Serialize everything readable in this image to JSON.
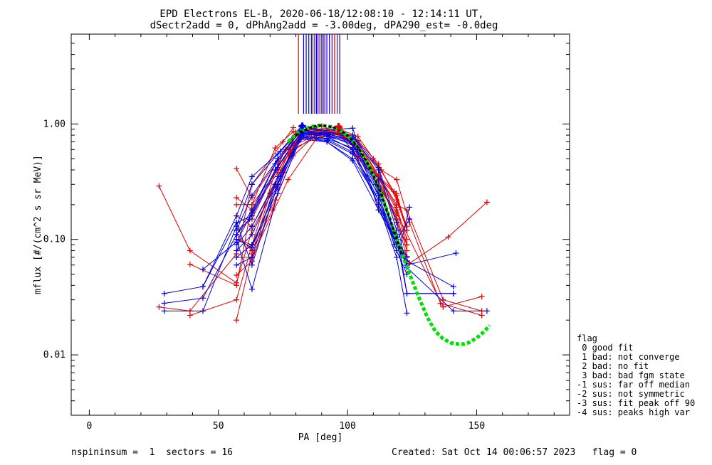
{
  "title_line1": "EPD Electrons EL-B, 2020-06-18/12:08:10 - 12:14:11 UT,",
  "title_line2": "dSectr2add = 0, dPhAng2add = -3.00deg, dPA290_est=  -0.0deg",
  "footer_left": "nspininsum =  1  sectors = 16",
  "footer_right": "Created: Sat Oct 14 00:06:57 2023   flag = 0",
  "legend": {
    "title": "flag",
    "items": [
      " 0 good fit",
      " 1 bad: not converge",
      " 2 bad: no fit",
      " 3 bad: bad fgm state",
      "-1 sus: far off median",
      "-2 sus: not symmetric",
      "-3 sus: fit peak off 90",
      "-4 sus: peaks high var"
    ]
  },
  "colors": {
    "red": "#e00000",
    "blue": "#0000e0",
    "green": "#00e000",
    "black": "#000000",
    "purple": "#7a0080"
  },
  "chart_data": {
    "type": "line",
    "xlabel": "PA [deg]",
    "ylabel": "mflux [#/(cm^2 s sr MeV)]",
    "xlim": [
      -7,
      186
    ],
    "ylim": [
      0.003,
      6
    ],
    "yscale": "log",
    "xticks": [
      0,
      50,
      100,
      150
    ],
    "yticks": [
      0.01,
      0.1,
      1.0
    ],
    "ytick_labels": [
      "0.01",
      "0.10",
      "1.00"
    ],
    "series": [
      {
        "color": "red",
        "x": [
          27,
          39,
          57,
          63,
          75,
          81,
          88,
          97,
          104,
          112,
          119,
          124,
          139,
          154
        ],
        "y": [
          0.29,
          0.08,
          0.042,
          0.12,
          0.38,
          0.78,
          0.86,
          0.82,
          0.62,
          0.29,
          0.1,
          0.062,
          0.105,
          0.21
        ]
      },
      {
        "color": "red",
        "x": [
          27,
          39,
          57,
          63,
          75,
          79
        ],
        "y": [
          0.026,
          0.024,
          0.075,
          0.3,
          0.7,
          0.93
        ]
      },
      {
        "color": "red",
        "x": [
          39,
          57,
          63,
          72,
          79,
          88,
          97,
          104,
          119,
          137,
          152
        ],
        "y": [
          0.061,
          0.04,
          0.2,
          0.62,
          0.86,
          0.9,
          0.94,
          0.55,
          0.17,
          0.026,
          0.032
        ]
      },
      {
        "color": "red",
        "x": [
          39,
          57,
          63,
          73,
          80,
          88,
          97,
          104,
          119,
          123,
          137,
          152
        ],
        "y": [
          0.022,
          0.03,
          0.09,
          0.45,
          0.85,
          0.88,
          0.9,
          0.7,
          0.2,
          0.18,
          0.03,
          0.024
        ]
      },
      {
        "color": "red",
        "x": [
          57,
          63,
          70,
          79,
          88,
          97,
          104,
          113,
          119,
          124,
          136,
          152
        ],
        "y": [
          0.02,
          0.075,
          0.25,
          0.68,
          0.85,
          0.92,
          0.64,
          0.4,
          0.33,
          0.14,
          0.028,
          0.022
        ]
      },
      {
        "color": "red",
        "x": [
          57,
          63,
          73,
          81,
          90,
          97,
          103,
          109,
          119,
          123
        ],
        "y": [
          0.41,
          0.23,
          0.48,
          0.83,
          0.96,
          0.83,
          0.64,
          0.41,
          0.25,
          0.12
        ]
      },
      {
        "color": "red",
        "x": [
          57,
          63,
          73,
          80,
          88,
          97,
          104,
          112,
          119,
          123
        ],
        "y": [
          0.23,
          0.18,
          0.38,
          0.8,
          0.83,
          0.86,
          0.6,
          0.35,
          0.14,
          0.09
        ]
      },
      {
        "color": "red",
        "x": [
          57,
          63,
          70,
          77,
          88,
          97,
          104,
          112,
          119,
          123
        ],
        "y": [
          0.16,
          0.13,
          0.25,
          0.55,
          0.8,
          0.9,
          0.72,
          0.45,
          0.22,
          0.12
        ]
      },
      {
        "color": "red",
        "x": [
          57,
          63,
          72,
          79,
          88,
          97,
          104,
          110,
          118,
          123
        ],
        "y": [
          0.1,
          0.09,
          0.22,
          0.53,
          0.82,
          0.9,
          0.78,
          0.5,
          0.26,
          0.13
        ]
      },
      {
        "color": "red",
        "x": [
          57,
          63,
          71,
          78,
          88,
          97,
          104,
          112,
          119,
          123
        ],
        "y": [
          0.11,
          0.08,
          0.18,
          0.6,
          0.76,
          0.88,
          0.66,
          0.36,
          0.19,
          0.1
        ]
      },
      {
        "color": "red",
        "x": [
          57,
          63,
          77,
          88,
          97,
          104,
          119,
          123
        ],
        "y": [
          0.07,
          0.07,
          0.33,
          0.75,
          0.83,
          0.58,
          0.16,
          0.08
        ]
      },
      {
        "color": "red",
        "x": [
          57,
          63,
          73,
          79,
          88,
          97,
          104,
          112,
          119,
          123
        ],
        "y": [
          0.049,
          0.065,
          0.3,
          0.65,
          0.8,
          0.83,
          0.5,
          0.32,
          0.15,
          0.07
        ]
      },
      {
        "color": "red",
        "x": [
          57,
          63,
          73,
          81,
          88,
          97,
          104,
          119,
          123
        ],
        "y": [
          0.2,
          0.2,
          0.4,
          0.72,
          0.9,
          0.8,
          0.52,
          0.24,
          0.12
        ]
      },
      {
        "color": "red",
        "x": [
          57,
          63,
          76,
          86,
          96,
          104,
          112,
          119,
          123
        ],
        "y": [
          0.12,
          0.15,
          0.6,
          0.82,
          0.85,
          0.62,
          0.35,
          0.18,
          0.09
        ]
      },
      {
        "color": "blue",
        "x": [
          29,
          44,
          57,
          63,
          73,
          82,
          92,
          102,
          112,
          119,
          123,
          141
        ],
        "y": [
          0.024,
          0.024,
          0.13,
          0.3,
          0.55,
          0.95,
          0.88,
          0.92,
          0.18,
          0.1,
          0.034,
          0.034
        ]
      },
      {
        "color": "blue",
        "x": [
          29,
          44,
          57,
          63,
          74,
          83,
          92,
          102,
          112,
          119,
          123,
          141,
          154
        ],
        "y": [
          0.034,
          0.039,
          0.16,
          0.35,
          0.58,
          0.94,
          0.85,
          0.8,
          0.42,
          0.14,
          0.057,
          0.024,
          0.024
        ]
      },
      {
        "color": "blue",
        "x": [
          44,
          57,
          63,
          73,
          82,
          92,
          102,
          111,
          119,
          123,
          142
        ],
        "y": [
          0.055,
          0.095,
          0.17,
          0.5,
          0.9,
          0.82,
          0.73,
          0.3,
          0.11,
          0.06,
          0.076
        ]
      },
      {
        "color": "blue",
        "x": [
          29,
          44,
          57,
          63,
          72,
          83,
          92,
          102,
          112,
          119,
          123,
          141
        ],
        "y": [
          0.028,
          0.031,
          0.11,
          0.18,
          0.45,
          0.88,
          0.83,
          0.77,
          0.4,
          0.12,
          0.034,
          0.034
        ]
      },
      {
        "color": "blue",
        "x": [
          44,
          57,
          63,
          73,
          82,
          92,
          102,
          112,
          119,
          123,
          141
        ],
        "y": [
          0.039,
          0.14,
          0.16,
          0.42,
          0.85,
          0.82,
          0.71,
          0.33,
          0.09,
          0.065,
          0.039
        ]
      },
      {
        "color": "blue",
        "x": [
          57,
          63,
          73,
          82,
          92,
          102,
          112,
          119,
          123
        ],
        "y": [
          0.12,
          0.24,
          0.5,
          0.88,
          0.8,
          0.7,
          0.28,
          0.1,
          0.071
        ]
      },
      {
        "color": "blue",
        "x": [
          57,
          62,
          72,
          82,
          92,
          102,
          112,
          120,
          124
        ],
        "y": [
          0.11,
          0.15,
          0.4,
          0.84,
          0.8,
          0.66,
          0.24,
          0.08,
          0.19
        ]
      },
      {
        "color": "blue",
        "x": [
          57,
          63,
          73,
          83,
          92,
          102,
          112,
          119,
          123
        ],
        "y": [
          0.09,
          0.13,
          0.35,
          0.83,
          0.78,
          0.6,
          0.22,
          0.09,
          0.065
        ]
      },
      {
        "color": "blue",
        "x": [
          57,
          63,
          72,
          82,
          92,
          102,
          112,
          119,
          123
        ],
        "y": [
          0.08,
          0.11,
          0.3,
          0.82,
          0.78,
          0.68,
          0.26,
          0.1,
          0.06
        ]
      },
      {
        "color": "blue",
        "x": [
          57,
          63,
          73,
          82,
          92,
          102,
          112,
          120,
          123
        ],
        "y": [
          0.07,
          0.09,
          0.28,
          0.8,
          0.75,
          0.62,
          0.2,
          0.08,
          0.065
        ]
      },
      {
        "color": "blue",
        "x": [
          57,
          63,
          72,
          82,
          92,
          102,
          112,
          119,
          123
        ],
        "y": [
          0.06,
          0.07,
          0.3,
          0.78,
          0.74,
          0.57,
          0.2,
          0.07,
          0.023
        ]
      },
      {
        "color": "blue",
        "x": [
          57,
          63,
          73,
          82,
          92,
          102,
          112,
          118,
          124
        ],
        "y": [
          0.1,
          0.037,
          0.25,
          0.76,
          0.72,
          0.55,
          0.25,
          0.09,
          0.15
        ]
      },
      {
        "color": "blue",
        "x": [
          57,
          63,
          73,
          82,
          92,
          102,
          112,
          119,
          123
        ],
        "y": [
          0.14,
          0.06,
          0.3,
          0.74,
          0.7,
          0.5,
          0.22,
          0.08,
          0.05
        ]
      },
      {
        "color": "blue",
        "x": [
          57,
          63,
          74,
          82,
          92,
          102,
          112,
          119,
          123
        ],
        "y": [
          0.1,
          0.085,
          0.35,
          0.78,
          0.7,
          0.48,
          0.18,
          0.09,
          0.06
        ]
      }
    ],
    "fit_green": {
      "color": "green",
      "x": [
        77,
        80,
        83,
        86,
        89,
        92,
        95,
        98,
        101,
        104,
        107,
        110,
        113,
        116,
        119,
        122,
        125,
        128,
        131,
        134,
        137,
        140,
        143,
        145,
        147,
        150,
        153,
        155
      ],
      "y": [
        0.7,
        0.82,
        0.9,
        0.95,
        0.97,
        0.96,
        0.93,
        0.86,
        0.76,
        0.63,
        0.49,
        0.36,
        0.25,
        0.16,
        0.1,
        0.066,
        0.044,
        0.03,
        0.021,
        0.016,
        0.0138,
        0.0127,
        0.0124,
        0.0124,
        0.0128,
        0.014,
        0.016,
        0.018
      ]
    },
    "fit_black": {
      "color": "black",
      "x": [
        80,
        83,
        86,
        89,
        92,
        95,
        98,
        101,
        104,
        107,
        110,
        113,
        116,
        119,
        121
      ],
      "y": [
        0.8,
        0.88,
        0.94,
        0.97,
        0.96,
        0.93,
        0.86,
        0.76,
        0.63,
        0.49,
        0.36,
        0.25,
        0.16,
        0.1,
        0.075
      ]
    },
    "vlines": [
      {
        "x": 81,
        "color": "red"
      },
      {
        "x": 83,
        "color": "blue"
      },
      {
        "x": 84,
        "color": "blue"
      },
      {
        "x": 85,
        "color": "blue"
      },
      {
        "x": 86,
        "color": "blue"
      },
      {
        "x": 86.6,
        "color": "purple"
      },
      {
        "x": 87.3,
        "color": "blue"
      },
      {
        "x": 88,
        "color": "blue"
      },
      {
        "x": 88.6,
        "color": "purple"
      },
      {
        "x": 89.3,
        "color": "blue"
      },
      {
        "x": 90,
        "color": "purple"
      },
      {
        "x": 90.6,
        "color": "blue"
      },
      {
        "x": 91.2,
        "color": "purple"
      },
      {
        "x": 92,
        "color": "blue"
      },
      {
        "x": 93,
        "color": "blue"
      },
      {
        "x": 94,
        "color": "purple"
      },
      {
        "x": 95,
        "color": "red"
      },
      {
        "x": 96,
        "color": "purple"
      },
      {
        "x": 97,
        "color": "blue"
      }
    ],
    "peak_markers": [
      {
        "x": 82.5,
        "y": 0.96,
        "color": "blue"
      },
      {
        "x": 96.5,
        "y": 0.95,
        "color": "red"
      }
    ]
  }
}
